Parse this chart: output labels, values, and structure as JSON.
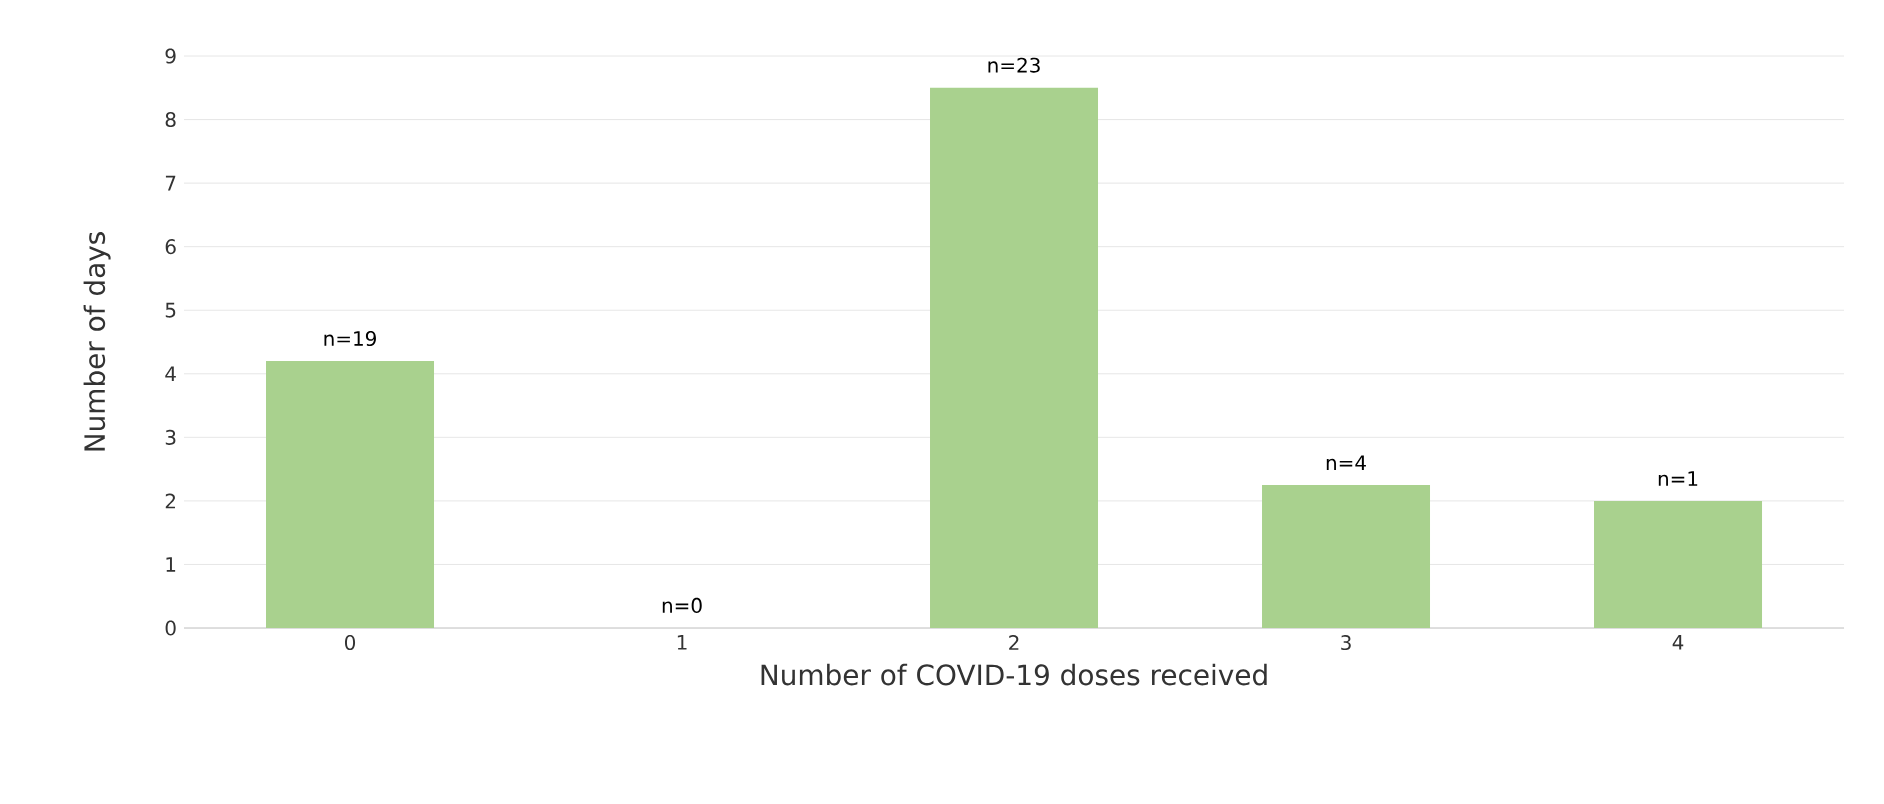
{
  "chart_data": {
    "type": "bar",
    "xlabel": "Number of COVID-19 doses received",
    "ylabel": "Number of days",
    "categories": [
      "0",
      "1",
      "2",
      "3",
      "4"
    ],
    "values": [
      4.2,
      0,
      8.5,
      2.25,
      2.0
    ],
    "annotations": [
      {
        "text": "n=19",
        "x": "0",
        "y": 4.2
      },
      {
        "text": "n=0",
        "x": "1",
        "y": 0
      },
      {
        "text": "n=23",
        "x": "2",
        "y": 8.5
      },
      {
        "text": "n=4",
        "x": "3",
        "y": 2.25
      },
      {
        "text": "n=1",
        "x": "4",
        "y": 2.0
      }
    ],
    "color": "#a9d18e",
    "ylim": [
      0,
      9
    ],
    "yticks": [
      0,
      1,
      2,
      3,
      4,
      5,
      6,
      7,
      8,
      9
    ],
    "grid": "y"
  }
}
